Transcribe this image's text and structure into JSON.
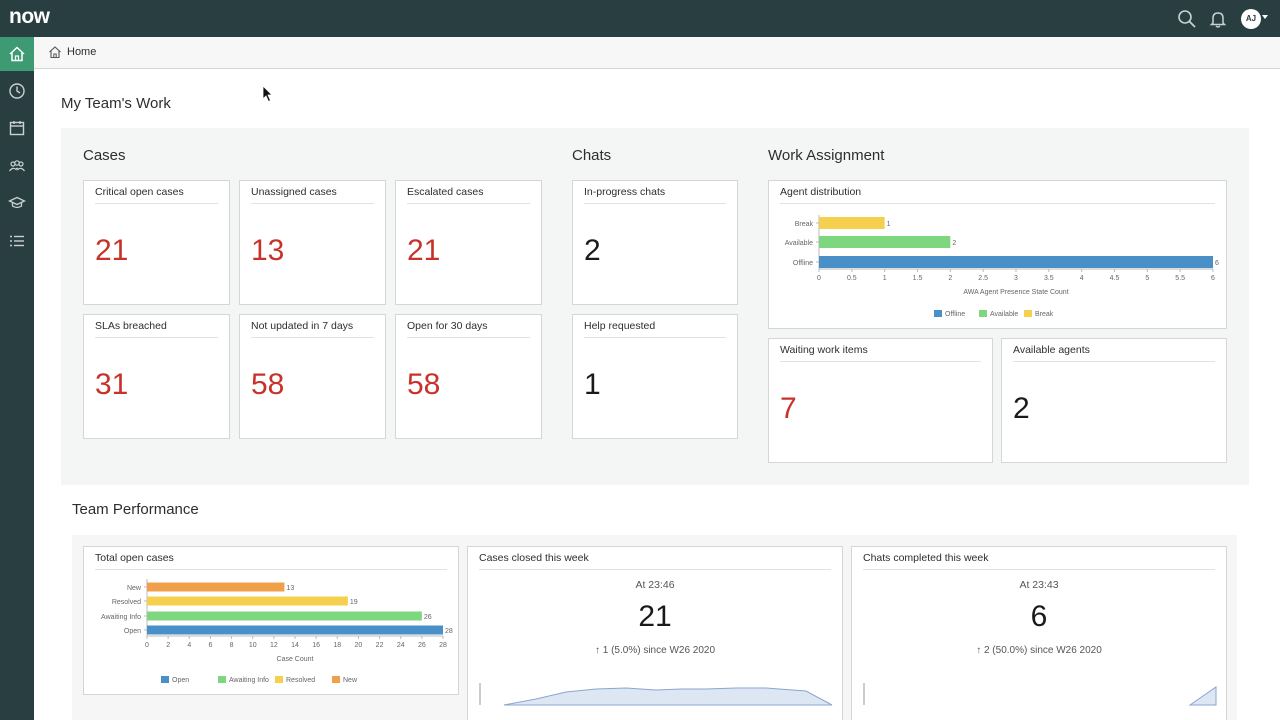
{
  "header": {
    "logo": "now",
    "user_initials": "AJ"
  },
  "sidebar": {
    "items": [
      {
        "name": "home-icon",
        "active": true
      },
      {
        "name": "history-icon",
        "active": false
      },
      {
        "name": "calendar-icon",
        "active": false
      },
      {
        "name": "team-icon",
        "active": false
      },
      {
        "name": "learning-icon",
        "active": false
      },
      {
        "name": "list-icon",
        "active": false
      }
    ]
  },
  "breadcrumb": {
    "home_label": "Home"
  },
  "page_title": "My Team's Work",
  "sections": {
    "cases_title": "Cases",
    "chats_title": "Chats",
    "work_title": "Work Assignment",
    "perf_title": "Team Performance"
  },
  "cases": [
    {
      "label": "Critical open cases",
      "value": "21"
    },
    {
      "label": "Unassigned cases",
      "value": "13"
    },
    {
      "label": "Escalated cases",
      "value": "21"
    },
    {
      "label": "SLAs breached",
      "value": "31"
    },
    {
      "label": "Not updated in 7 days",
      "value": "58"
    },
    {
      "label": "Open for 30 days",
      "value": "58"
    }
  ],
  "chats": [
    {
      "label": "In-progress chats",
      "value": "2"
    },
    {
      "label": "Help requested",
      "value": "1"
    }
  ],
  "work": {
    "waiting_label": "Waiting work items",
    "waiting_value": "7",
    "available_label": "Available agents",
    "available_value": "2"
  },
  "performance": {
    "closed": {
      "label": "Cases closed this week",
      "at": "At  23:46",
      "value": "21",
      "change": "↑ 1 (5.0%) since W26 2020"
    },
    "chats": {
      "label": "Chats completed this week",
      "at": "At  23:43",
      "value": "6",
      "change": "↑ 2 (50.0%) since W26 2020"
    }
  },
  "colors": {
    "offline": "#4a90c8",
    "available": "#7ed67e",
    "break": "#f5d04e",
    "open": "#4a90c8",
    "awaiting": "#7ed67e",
    "resolved": "#f5d04e",
    "new": "#f0a04b",
    "accent_red": "#c7332b"
  },
  "chart_data": [
    {
      "type": "bar",
      "orientation": "horizontal",
      "title": "Agent distribution",
      "categories": [
        "Break",
        "Available",
        "Offline"
      ],
      "values": [
        1,
        2,
        6
      ],
      "xlabel": "AWA Agent Presence State Count",
      "xlim": [
        0,
        6
      ],
      "ticks": [
        0,
        0.5,
        1,
        1.5,
        2,
        2.5,
        3,
        3.5,
        4,
        4.5,
        5,
        5.5,
        6
      ],
      "legend": [
        "Offline",
        "Available",
        "Break"
      ],
      "legend_position": "bottom"
    },
    {
      "type": "bar",
      "orientation": "horizontal",
      "title": "Total open cases",
      "categories": [
        "New",
        "Resolved",
        "Awaiting Info",
        "Open"
      ],
      "values": [
        13,
        19,
        26,
        28
      ],
      "xlabel": "Case Count",
      "xlim": [
        0,
        28
      ],
      "ticks": [
        0,
        2,
        4,
        6,
        8,
        10,
        12,
        14,
        16,
        18,
        20,
        22,
        24,
        26,
        28
      ],
      "legend": [
        "Open",
        "Awaiting Info",
        "Resolved",
        "New"
      ],
      "legend_position": "bottom"
    }
  ]
}
